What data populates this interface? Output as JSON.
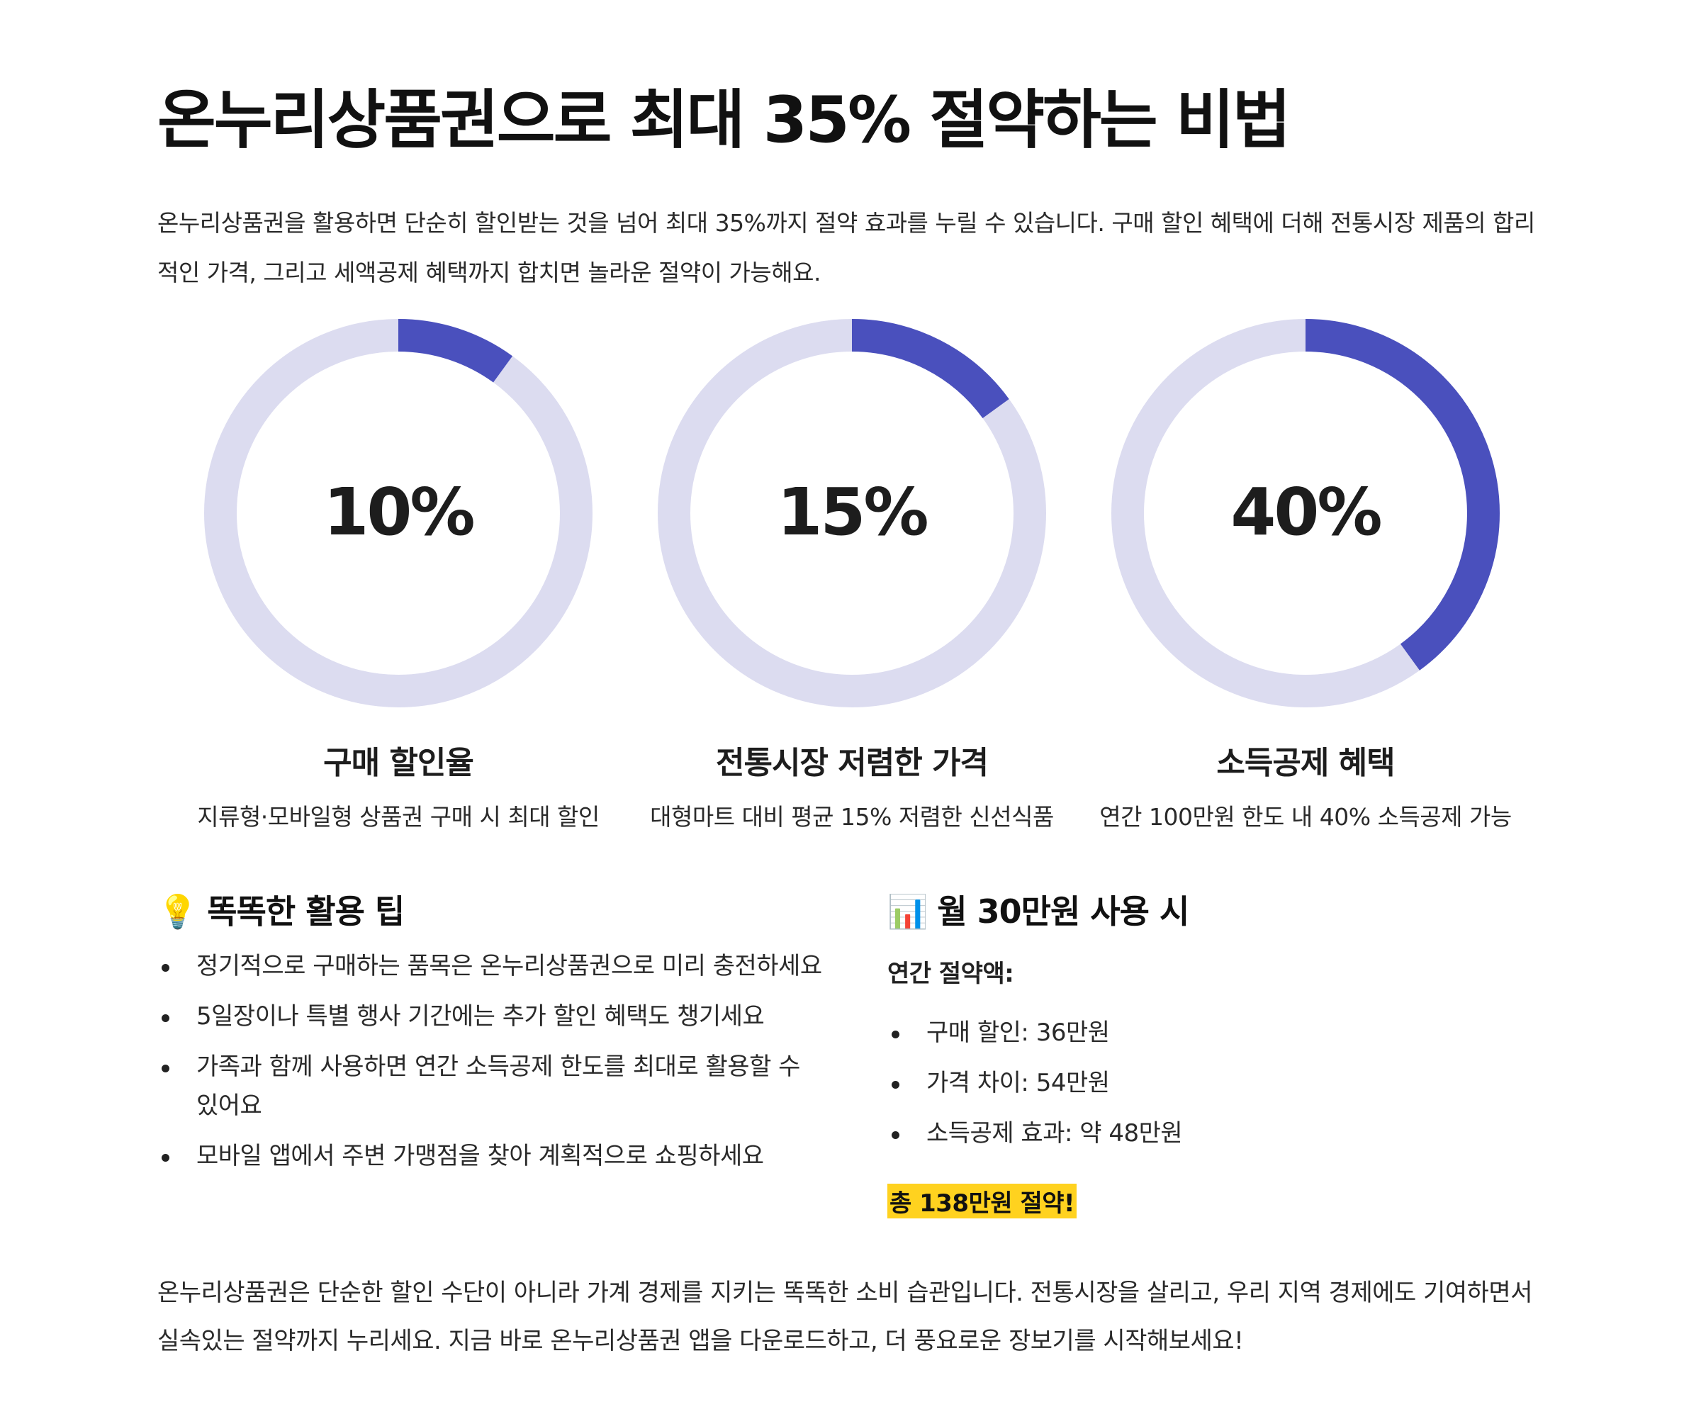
{
  "title": "온누리상품권으로 최대 35% 절약하는 비법",
  "intro": "온누리상품권을 활용하면 단순히 할인받는 것을 넘어 최대 35%까지 절약 효과를 누릴 수 있습니다. 구매 할인 혜택에 더해 전통시장 제품의 합리적인 가격, 그리고 세액공제 혜택까지 합치면 놀라운 절약이 가능해요.",
  "colors": {
    "accent": "#4a50bd",
    "ring_track": "#dcdcf0"
  },
  "stats": [
    {
      "value": 10,
      "value_label": "10%",
      "label": "구매 할인율",
      "desc": "지류형·모바일형 상품권 구매 시 최대 할인"
    },
    {
      "value": 15,
      "value_label": "15%",
      "label": "전통시장 저렴한 가격",
      "desc": "대형마트 대비 평균 15% 저렴한 신선식품"
    },
    {
      "value": 40,
      "value_label": "40%",
      "label": "소득공제 혜택",
      "desc": "연간 100만원 한도 내 40% 소득공제 가능"
    }
  ],
  "tips": {
    "icon": "lightbulb-icon",
    "title": "똑똑한 활용 팁",
    "items": [
      "정기적으로 구매하는 품목은 온누리상품권으로 미리 충전하세요",
      "5일장이나 특별 행사 기간에는 추가 할인 혜택도 챙기세요",
      "가족과 함께 사용하면 연간 소득공제 한도를 최대로 활용할 수 있어요",
      "모바일 앱에서 주변 가맹점을 찾아 계획적으로 쇼핑하세요"
    ]
  },
  "monthly": {
    "icon": "bar-chart-icon",
    "title": "월 30만원 사용 시",
    "subtitle": "연간 절약액:",
    "items": [
      "구매 할인: 36만원",
      "가격 차이: 54만원",
      "소득공제 효과: 약 48만원"
    ],
    "total": "총 138만원 절약!"
  },
  "outro": "온누리상품권은 단순한 할인 수단이 아니라 가계 경제를 지키는 똑똑한 소비 습관입니다. 전통시장을 살리고, 우리 지역 경제에도 기여하면서 실속있는 절약까지 누리세요. 지금 바로 온누리상품권 앱을 다운로드하고, 더 풍요로운 장보기를 시작해보세요!"
}
